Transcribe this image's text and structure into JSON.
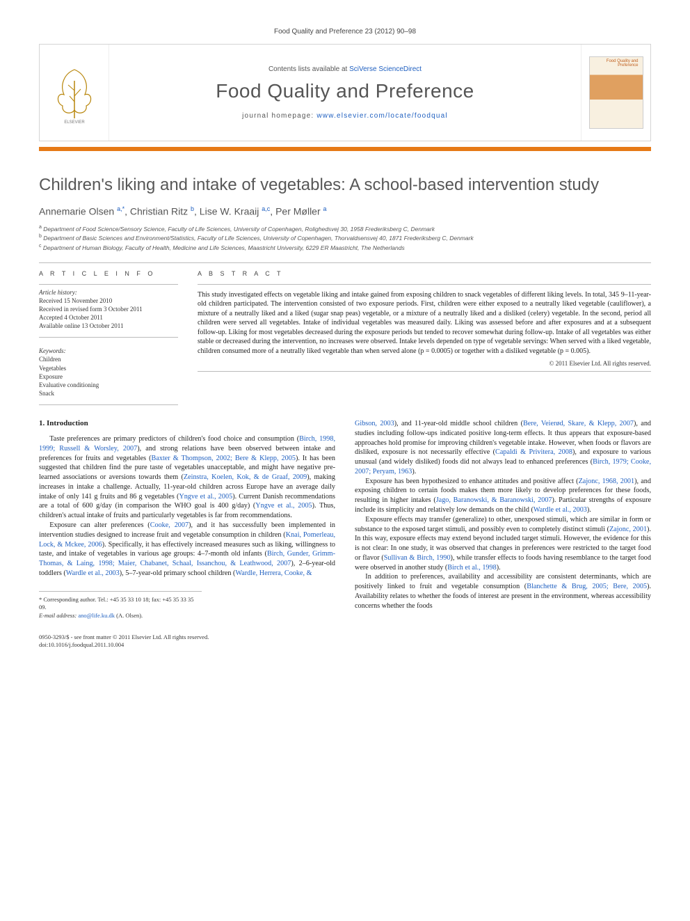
{
  "header": {
    "citation": "Food Quality and Preference 23 (2012) 90–98"
  },
  "banner": {
    "contents_prefix": "Contents lists available at ",
    "contents_link": "SciVerse ScienceDirect",
    "journal_title": "Food Quality and Preference",
    "homepage_prefix": "journal homepage: ",
    "homepage_url": "www.elsevier.com/locate/foodqual",
    "cover_text": "Food Quality and Preference"
  },
  "article": {
    "title": "Children's liking and intake of vegetables: A school-based intervention study",
    "authors_html": "Annemarie Olsen <sup>a,*</sup>, Christian Ritz <sup>b</sup>, Lise W. Kraaij <sup>a,c</sup>, Per Møller <sup>a</sup>",
    "affils": [
      "a Department of Food Science/Sensory Science, Faculty of Life Sciences, University of Copenhagen, Rolighedsvej 30, 1958 Frederiksberg C, Denmark",
      "b Department of Basic Sciences and Environment/Statistics, Faculty of Life Sciences, University of Copenhagen, Thorvaldsensvej 40, 1871 Frederiksberg C, Denmark",
      "c Department of Human Biology, Faculty of Health, Medicine and Life Sciences, Maastricht University, 6229 ER Maastricht, The Netherlands"
    ]
  },
  "info": {
    "article_info_head": "A R T I C L E   I N F O",
    "abstract_head": "A B S T R A C T",
    "history_label": "Article history:",
    "history": [
      "Received 15 November 2010",
      "Received in revised form 3 October 2011",
      "Accepted 4 October 2011",
      "Available online 13 October 2011"
    ],
    "keywords_label": "Keywords:",
    "keywords": [
      "Children",
      "Vegetables",
      "Exposure",
      "Evaluative conditioning",
      "Snack"
    ],
    "abstract": "This study investigated effects on vegetable liking and intake gained from exposing children to snack vegetables of different liking levels. In total, 345 9–11-year-old children participated. The intervention consisted of two exposure periods. First, children were either exposed to a neutrally liked vegetable (cauliflower), a mixture of a neutrally liked and a liked (sugar snap peas) vegetable, or a mixture of a neutrally liked and a disliked (celery) vegetable. In the second, period all children were served all vegetables. Intake of individual vegetables was measured daily. Liking was assessed before and after exposures and at a subsequent follow-up. Liking for most vegetables decreased during the exposure periods but tended to recover somewhat during follow-up. Intake of all vegetables was either stable or decreased during the intervention, no increases were observed. Intake levels depended on type of vegetable servings: When served with a liked vegetable, children consumed more of a neutrally liked vegetable than when served alone (p = 0.0005) or together with a disliked vegetable (p = 0.005).",
    "copyright": "© 2011 Elsevier Ltd. All rights reserved."
  },
  "body": {
    "intro_head": "1. Introduction",
    "col1": [
      "Taste preferences are primary predictors of children's food choice and consumption (<span class=\"ref\">Birch, 1998, 1999; Russell & Worsley, 2007</span>), and strong relations have been observed between intake and preferences for fruits and vegetables (<span class=\"ref\">Baxter & Thompson, 2002; Bere & Klepp, 2005</span>). It has been suggested that children find the pure taste of vegetables unacceptable, and might have negative pre-learned associations or aversions towards them (<span class=\"ref\">Zeinstra, Koelen, Kok, & de Graaf, 2009</span>), making increases in intake a challenge. Actually, 11-year-old children across Europe have an average daily intake of only 141 g fruits and 86 g vegetables (<span class=\"ref\">Yngve et al., 2005</span>). Current Danish recommendations are a total of 600 g/day (in comparison the WHO goal is 400 g/day) (<span class=\"ref\">Yngve et al., 2005</span>). Thus, children's actual intake of fruits and particularly vegetables is far from recommendations.",
      "Exposure can alter preferences (<span class=\"ref\">Cooke, 2007</span>), and it has successfully been implemented in intervention studies designed to increase fruit and vegetable consumption in children (<span class=\"ref\">Knai, Pomerleau, Lock, & Mckee, 2006</span>). Specifically, it has effectively increased measures such as liking, willingness to taste, and intake of vegetables in various age groups: 4–7-month old infants (<span class=\"ref\">Birch, Gunder, Grimm-Thomas, & Laing, 1998; Maier, Chabanet, Schaal, Issanchou, & Leathwood, 2007</span>), 2–6-year-old toddlers (<span class=\"ref\">Wardle et al., 2003</span>), 5–7-year-old primary school children (<span class=\"ref\">Wardle, Herrera, Cooke, &</span>"
    ],
    "col2": [
      "<span class=\"ref\">Gibson, 2003</span>), and 11-year-old middle school children (<span class=\"ref\">Bere, Veierød, Skare, & Klepp, 2007</span>), and studies including follow-ups indicated positive long-term effects. It thus appears that exposure-based approaches hold promise for improving children's vegetable intake. However, when foods or flavors are disliked, exposure is not necessarily effective (<span class=\"ref\">Capaldi & Privitera, 2008</span>), and exposure to various unusual (and widely disliked) foods did not always lead to enhanced preferences (<span class=\"ref\">Birch, 1979; Cooke, 2007; Peryam, 1963</span>).",
      "Exposure has been hypothesized to enhance attitudes and positive affect (<span class=\"ref\">Zajonc, 1968, 2001</span>), and exposing children to certain foods makes them more likely to develop preferences for these foods, resulting in higher intakes (<span class=\"ref\">Jago, Baranowski, & Baranowski, 2007</span>). Particular strengths of exposure include its simplicity and relatively low demands on the child (<span class=\"ref\">Wardle et al., 2003</span>).",
      "Exposure effects may transfer (generalize) to other, unexposed stimuli, which are similar in form or substance to the exposed target stimuli, and possibly even to completely distinct stimuli (<span class=\"ref\">Zajonc, 2001</span>). In this way, exposure effects may extend beyond included target stimuli. However, the evidence for this is not clear: In one study, it was observed that changes in preferences were restricted to the target food or flavor (<span class=\"ref\">Sullivan & Birch, 1990</span>), while transfer effects to foods having resemblance to the target food were observed in another study (<span class=\"ref\">Birch et al., 1998</span>).",
      "In addition to preferences, availability and accessibility are consistent determinants, which are positively linked to fruit and vegetable consumption (<span class=\"ref\">Blanchette & Brug, 2005; Bere, 2005</span>). Availability relates to whether the foods of interest are present in the environment, whereas accessibility concerns whether the foods"
    ]
  },
  "footer": {
    "corr_label": "* Corresponding author. Tel.: +45 35 33 10 18; fax: +45 35 33 35 09.",
    "email_label": "E-mail address:",
    "email": "ano@life.ku.dk",
    "email_suffix": "(A. Olsen).",
    "front_matter": "0950-3293/$ - see front matter © 2011 Elsevier Ltd. All rights reserved.",
    "doi": "doi:10.1016/j.foodqual.2011.10.004"
  },
  "colors": {
    "accent_orange": "#e67a17",
    "link_blue": "#2060c0",
    "text_gray": "#555555"
  }
}
